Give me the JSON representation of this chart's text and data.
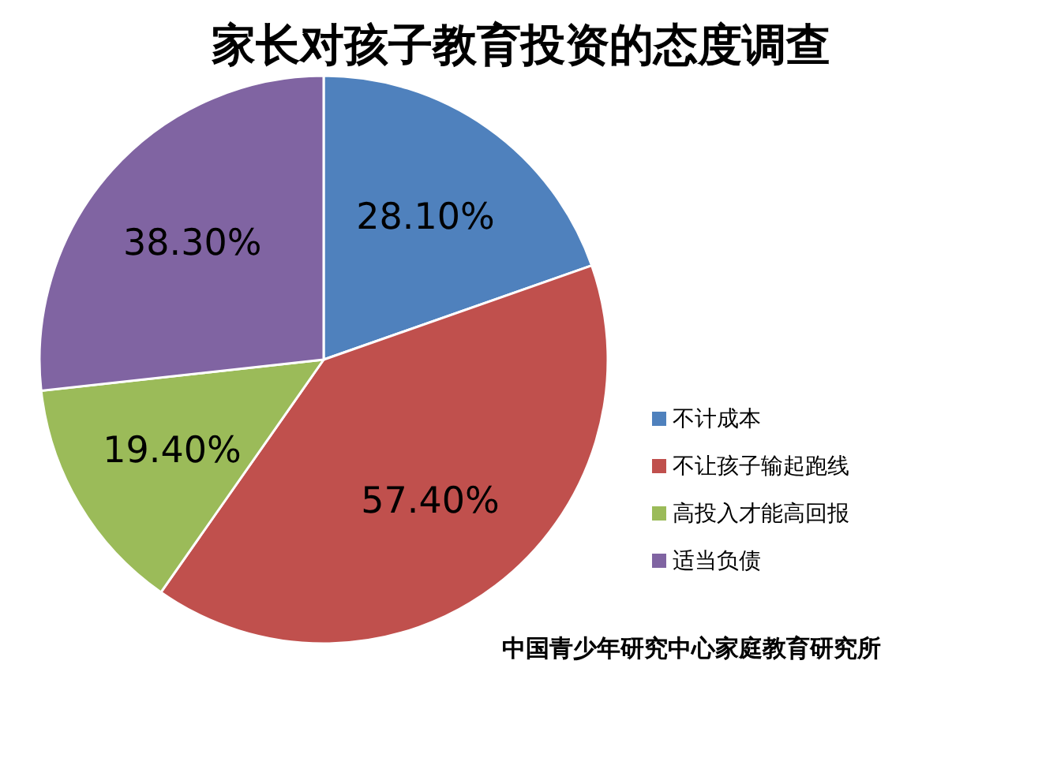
{
  "chart_data": {
    "type": "pie",
    "title": "家长对孩子教育投资的态度调查",
    "categories": [
      "不计成本",
      "不让孩子输起跑线",
      "高投入才能高回报",
      "适当负债"
    ],
    "values": [
      28.1,
      57.4,
      19.4,
      38.3
    ],
    "colors": [
      "#4f81bd",
      "#c0504d",
      "#9bbb59",
      "#8064a2"
    ],
    "value_labels": [
      "28.10%",
      "57.40%",
      "19.40%",
      "38.30%"
    ],
    "legend": "right",
    "annotations": [
      "中国青少年研究中心家庭教育研究所"
    ]
  }
}
